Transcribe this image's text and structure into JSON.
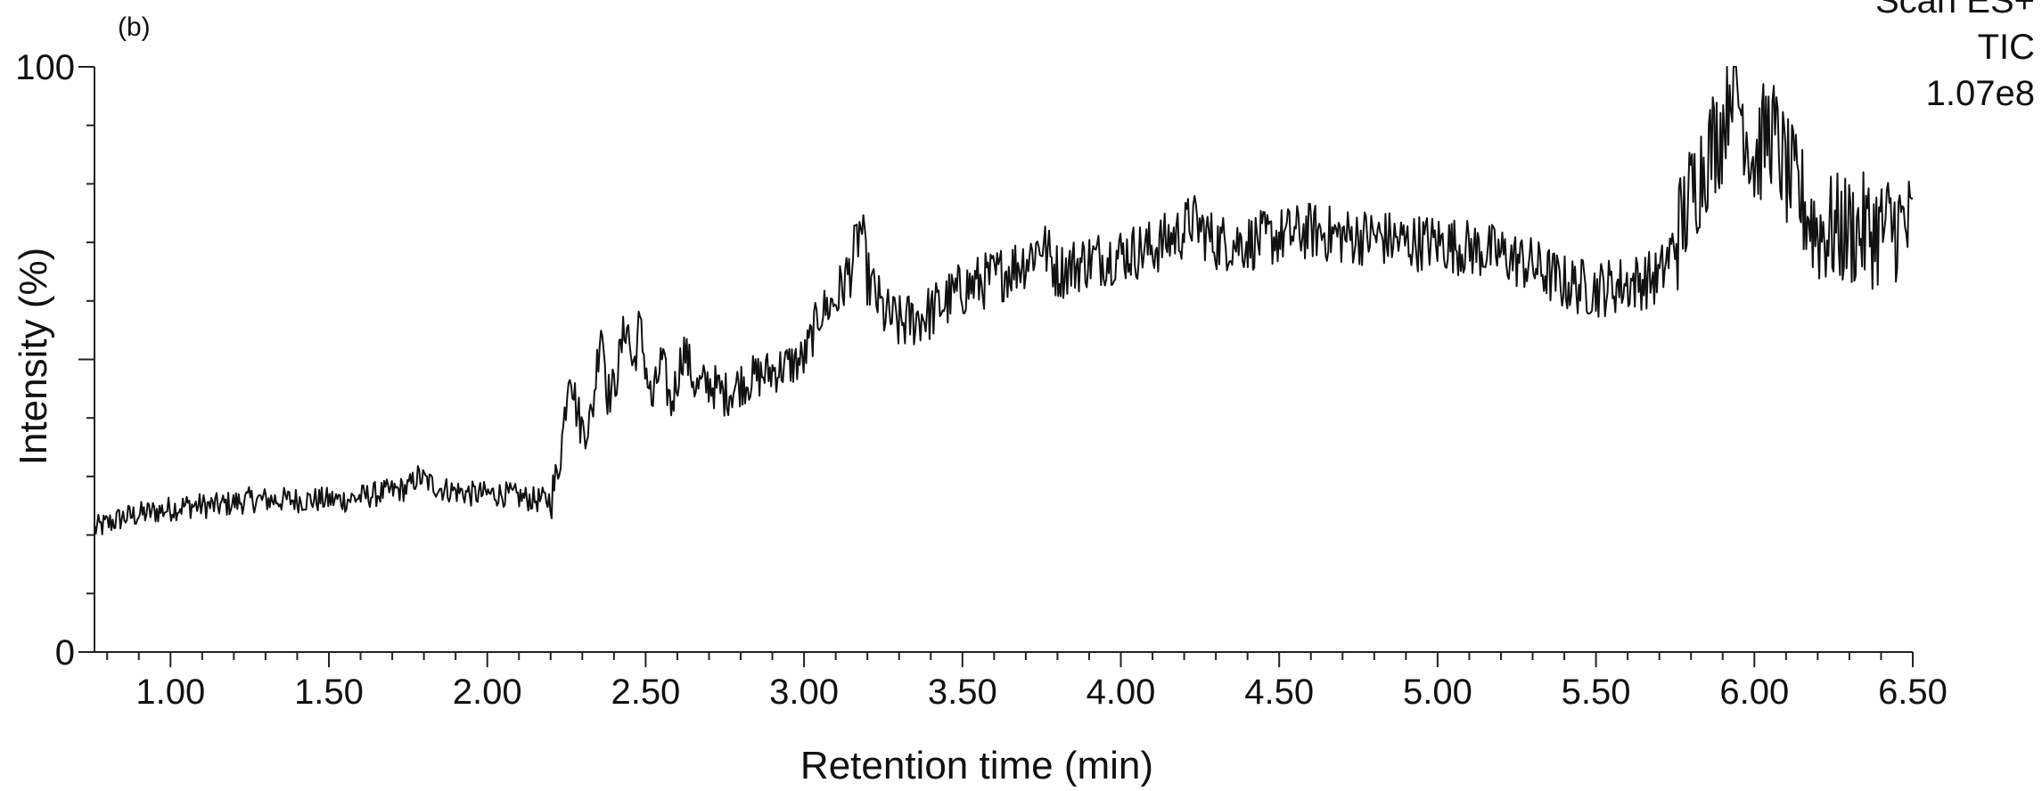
{
  "chart_data": {
    "type": "line",
    "panel_label": "(b)",
    "title": "",
    "xlabel": "Retention time (min)",
    "ylabel": "Intensity (%)",
    "xlim": [
      0.76,
      6.5
    ],
    "ylim": [
      0,
      100
    ],
    "x_ticks": [
      1.0,
      1.5,
      2.0,
      2.5,
      3.0,
      3.5,
      4.0,
      4.5,
      5.0,
      5.5,
      6.0,
      6.5
    ],
    "x_tick_labels": [
      "1.00",
      "1.50",
      "2.00",
      "2.50",
      "3.00",
      "3.50",
      "4.00",
      "4.50",
      "5.00",
      "5.50",
      "6.00",
      "6.50"
    ],
    "x_minor_step": 0.1,
    "y_ticks": [
      0,
      50,
      100
    ],
    "y_tick_labels": [
      "0",
      "",
      "100"
    ],
    "y_minor_step": 10,
    "info_text": [
      "Scan ES+",
      "TIC",
      "1.07e8"
    ],
    "series": [
      {
        "x": [
          0.76,
          0.85,
          0.95,
          1.05,
          1.15,
          1.25,
          1.35,
          1.45,
          1.55,
          1.65,
          1.75,
          1.78,
          1.85,
          1.95,
          2.05,
          2.15,
          2.2,
          2.22,
          2.24,
          2.26,
          2.28,
          2.3,
          2.33,
          2.36,
          2.38,
          2.4,
          2.44,
          2.46,
          2.48,
          2.52,
          2.55,
          2.58,
          2.62,
          2.66,
          2.7,
          2.75,
          2.8,
          2.9,
          3.0,
          3.05,
          3.1,
          3.15,
          3.18,
          3.2,
          3.25,
          3.3,
          3.4,
          3.5,
          3.6,
          3.7,
          3.75,
          3.8,
          3.9,
          4.0,
          4.1,
          4.2,
          4.22,
          4.3,
          4.4,
          4.5,
          4.6,
          4.7,
          4.8,
          4.9,
          5.0,
          5.1,
          5.2,
          5.3,
          5.4,
          5.5,
          5.6,
          5.7,
          5.75,
          5.8,
          5.85,
          5.9,
          5.93,
          5.95,
          6.0,
          6.05,
          6.1,
          6.2,
          6.3,
          6.4,
          6.45,
          6.5
        ],
        "values": [
          21,
          23,
          24,
          25,
          25,
          26,
          26,
          26,
          26,
          27,
          28,
          30,
          28,
          27,
          27,
          26,
          26,
          30,
          38,
          50,
          42,
          38,
          40,
          57,
          44,
          45,
          57,
          48,
          56,
          42,
          50,
          42,
          52,
          45,
          46,
          44,
          46,
          48,
          50,
          58,
          60,
          66,
          73,
          64,
          58,
          56,
          58,
          62,
          64,
          67,
          70,
          65,
          67,
          68,
          69,
          72,
          74,
          70,
          70,
          71,
          72,
          71,
          71,
          70,
          70,
          69,
          68,
          66,
          63,
          62,
          63,
          64,
          70,
          78,
          85,
          90,
          100,
          95,
          84,
          90,
          82,
          72,
          72,
          72,
          73,
          72
        ]
      }
    ]
  }
}
